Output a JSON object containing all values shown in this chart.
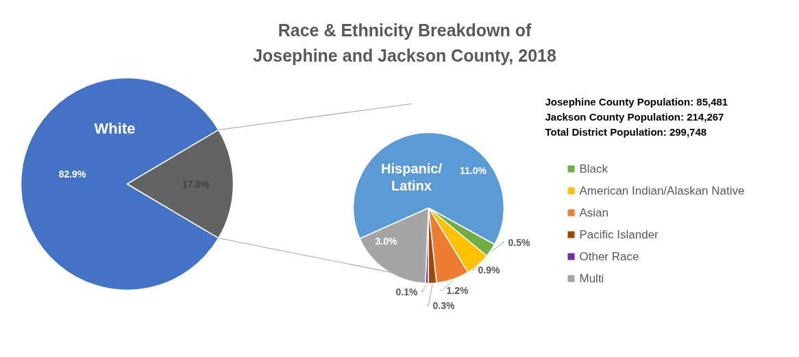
{
  "chart_data": [
    {
      "type": "pie",
      "title": "Race & Ethnicity Breakdown of\nJosephine and Jackson County, 2018",
      "categories": [
        "White",
        null
      ],
      "values": [
        82.9,
        17.0
      ],
      "colors": [
        "#4472c4",
        "#636363"
      ],
      "value_labels": [
        "82.9%",
        "17.0%"
      ]
    },
    {
      "type": "pie",
      "categories": [
        "Hispanic/\nLatinx",
        "Black",
        "American Indian/Alaskan Native",
        "Asian",
        "Pacific Islander",
        "Other Race",
        "Multi"
      ],
      "values": [
        11.0,
        0.5,
        0.9,
        1.2,
        0.3,
        0.1,
        3.0
      ],
      "colors": [
        "#5b9bd5",
        "#70ad47",
        "#ffc000",
        "#ed7d31",
        "#9e480e",
        "#7030a0",
        "#a5a5a5"
      ],
      "value_labels": [
        "11.0%",
        "0.5%",
        "0.9%",
        "1.2%",
        "0.3%",
        "0.1%",
        "3.0%"
      ],
      "legend": "right",
      "annotations": [
        "Josephine County Population:   85,481",
        "Jackson County Population:    214,267",
        "Total District Population:        299,748"
      ]
    }
  ]
}
